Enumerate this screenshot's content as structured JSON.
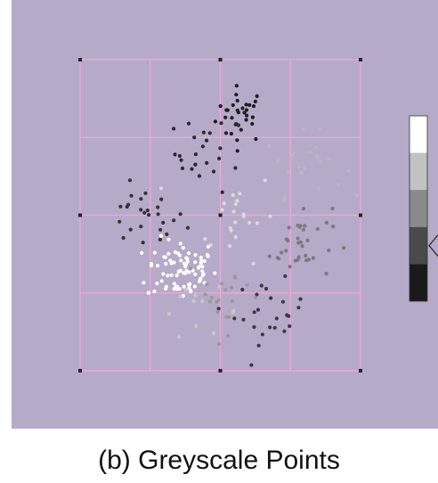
{
  "caption": "(b) Greyscale Points",
  "colors": {
    "panel_background": "#b6aac9",
    "grid_lines": "#f0a8d8",
    "grid_nodes": "#222222",
    "legend_outline": "#333333"
  },
  "chart_data": {
    "type": "scatter",
    "title": "",
    "xlabel": "",
    "ylabel": "",
    "xlim": [
      0,
      4
    ],
    "ylim": [
      0,
      4
    ],
    "grid": true,
    "grid_divisions": 4,
    "legend": "right",
    "colorscale": [
      "#ffffff",
      "#c2c2c2",
      "#8a8a8a",
      "#4a4a4a",
      "#1a1a1a"
    ],
    "clusters": [
      {
        "shade": "#1e1e1e",
        "center": [
          2.3,
          3.3
        ],
        "spread": [
          0.18,
          0.18
        ],
        "count": 30
      },
      {
        "shade": "#2a2a2a",
        "center": [
          1.85,
          2.8
        ],
        "spread": [
          0.25,
          0.25
        ],
        "count": 26
      },
      {
        "shade": "#333333",
        "center": [
          0.9,
          1.95
        ],
        "spread": [
          0.3,
          0.2
        ],
        "count": 26
      },
      {
        "shade": "#ffffff",
        "center": [
          1.45,
          1.3
        ],
        "spread": [
          0.25,
          0.2
        ],
        "count": 80
      },
      {
        "shade": "#dadada",
        "center": [
          2.2,
          2.0
        ],
        "spread": [
          0.3,
          0.3
        ],
        "count": 22
      },
      {
        "shade": "#b8b8b8",
        "center": [
          3.2,
          2.65
        ],
        "spread": [
          0.28,
          0.2
        ],
        "count": 22
      },
      {
        "shade": "#7a7a7a",
        "center": [
          3.15,
          1.65
        ],
        "spread": [
          0.22,
          0.25
        ],
        "count": 35
      },
      {
        "shade": "#3a3a3a",
        "center": [
          2.7,
          0.75
        ],
        "spread": [
          0.25,
          0.2
        ],
        "count": 25
      },
      {
        "shade": "#9a9a9a",
        "center": [
          2.1,
          1.0
        ],
        "spread": [
          0.3,
          0.25
        ],
        "count": 20
      },
      {
        "shade": "#c8c8c8",
        "center": [
          1.7,
          0.75
        ],
        "spread": [
          0.3,
          0.15
        ],
        "count": 12
      }
    ]
  }
}
